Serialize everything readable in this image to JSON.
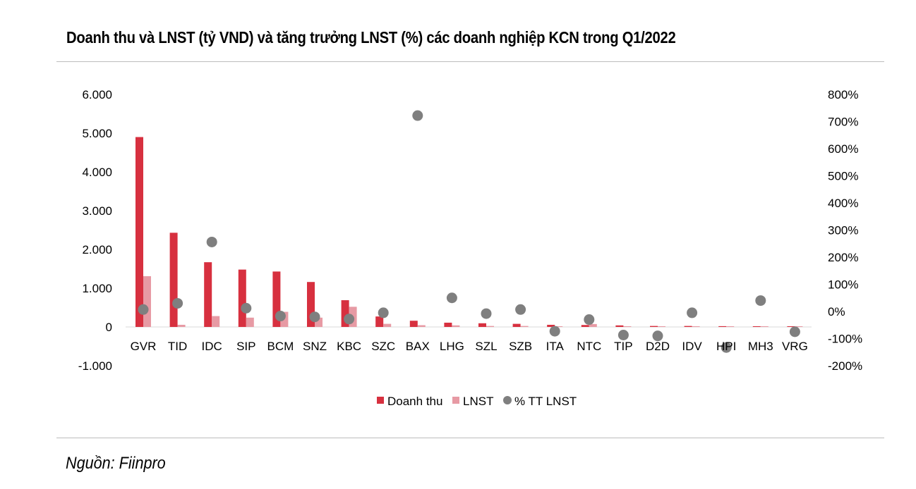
{
  "title": "Doanh thu và LNST (tỷ VND) và tăng trưởng LNST (%) các doanh nghiệp KCN trong Q1/2022",
  "source": "Nguồn: Fiinpro",
  "colors": {
    "revenue": "#d7303f",
    "profit": "#e79aa4",
    "growth": "#7f7f7f"
  },
  "chart_data": {
    "type": "bar",
    "title": "Doanh thu và LNST (tỷ VND) và tăng trưởng LNST (%) các doanh nghiệp KCN trong Q1/2022",
    "categories": [
      "GVR",
      "TID",
      "IDC",
      "SIP",
      "BCM",
      "SNZ",
      "KBC",
      "SZC",
      "BAX",
      "LHG",
      "SZL",
      "SZB",
      "ITA",
      "NTC",
      "TIP",
      "D2D",
      "IDV",
      "HPI",
      "MH3",
      "VRG"
    ],
    "series": [
      {
        "name": "Doanh thu",
        "type": "bar",
        "axis": "left",
        "values": [
          4900,
          2430,
          1670,
          1480,
          1430,
          1160,
          690,
          270,
          160,
          110,
          95,
          80,
          55,
          50,
          40,
          25,
          25,
          20,
          15,
          10
        ]
      },
      {
        "name": "LNST",
        "type": "bar",
        "axis": "left",
        "values": [
          1310,
          55,
          280,
          240,
          390,
          240,
          520,
          80,
          45,
          40,
          25,
          25,
          12,
          75,
          15,
          15,
          10,
          10,
          10,
          5
        ]
      },
      {
        "name": "% TT LNST",
        "type": "scatter",
        "axis": "right",
        "values": [
          7,
          30,
          256,
          12,
          -17,
          -20,
          -28,
          -5,
          722,
          50,
          -8,
          7,
          -73,
          -30,
          -87,
          -90,
          -5,
          -133,
          40,
          -75
        ]
      }
    ],
    "y_left": {
      "ylim": [
        -1000,
        6000
      ],
      "ticks": [
        "-1.000",
        "0",
        "1.000",
        "2.000",
        "3.000",
        "4.000",
        "5.000",
        "6.000"
      ]
    },
    "y_right": {
      "ylim": [
        -200,
        800
      ],
      "ticks": [
        "-200%",
        "-100%",
        "0%",
        "100%",
        "200%",
        "300%",
        "400%",
        "500%",
        "600%",
        "700%",
        "800%"
      ]
    },
    "legend": {
      "position": "bottom",
      "items": [
        "Doanh thu",
        "LNST",
        "% TT LNST"
      ]
    },
    "grid": false
  }
}
